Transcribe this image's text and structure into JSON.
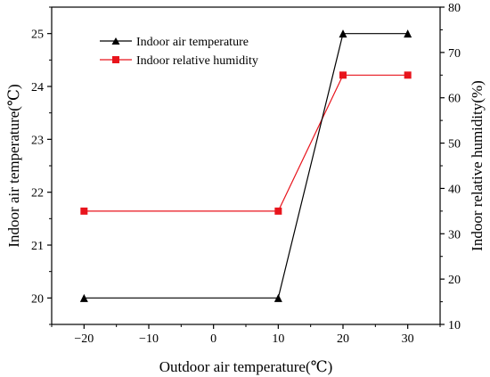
{
  "chart_data": {
    "type": "line",
    "x": [
      -20,
      10,
      20,
      30
    ],
    "xlabel": "Outdoor air temperature(℃)",
    "xlim": [
      -25,
      35
    ],
    "xticks": [
      -20,
      -10,
      0,
      10,
      20,
      30
    ],
    "xtick_labels": [
      "−20",
      "−10",
      "0",
      "10",
      "20",
      "30"
    ],
    "ylabel": "Indoor  air temperature(℃)",
    "ylim": [
      19.5,
      25.5
    ],
    "yticks": [
      20,
      21,
      22,
      23,
      24,
      25
    ],
    "ytick_labels": [
      "20",
      "21",
      "22",
      "23",
      "24",
      "25"
    ],
    "y2label": "Indoor  relative humidity(%)",
    "y2lim": [
      10,
      80
    ],
    "y2ticks": [
      10,
      20,
      30,
      40,
      50,
      60,
      70,
      80
    ],
    "y2tick_labels": [
      "10",
      "20",
      "30",
      "40",
      "50",
      "60",
      "70",
      "80"
    ],
    "legend_position": "top-left",
    "grid": false,
    "series": [
      {
        "name": "Indoor air temperature",
        "axis": "left",
        "values": [
          20,
          20,
          25,
          25
        ],
        "color": "#000000",
        "marker": "triangle"
      },
      {
        "name": "Indoor relative humidity",
        "axis": "right",
        "values": [
          35,
          35,
          65,
          65
        ],
        "color": "#e8141c",
        "marker": "square"
      }
    ]
  }
}
